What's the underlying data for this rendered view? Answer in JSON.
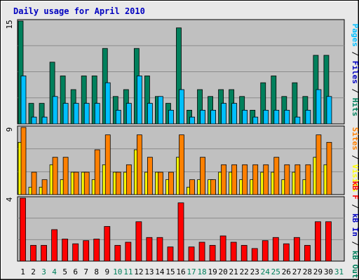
{
  "title": "Daily usage for April 2010",
  "colors": {
    "background": "#e8e8e8",
    "panel": "#c0c0c0",
    "grid": "#8c8c8c",
    "title": "#0000c0",
    "pages": "#00bfff",
    "files": "#0000c0",
    "hits": "#00805c",
    "visits": "#ffff00",
    "sites": "#ff8000",
    "kbin": "#0000c0",
    "kbout": "#00805c",
    "kbf": "#ff0000",
    "day_normal": "#000000",
    "day_weekend": "#00805c"
  },
  "right_labels": {
    "top": [
      {
        "text": "Pages",
        "color": "#00bfff"
      },
      {
        "text": " / ",
        "color": "#000000"
      },
      {
        "text": "Files",
        "color": "#0000c0"
      },
      {
        "text": " / ",
        "color": "#000000"
      },
      {
        "text": "Hits",
        "color": "#00805c"
      }
    ],
    "middle": [
      {
        "text": "Sites",
        "color": "#ff8000"
      },
      {
        "text": " / ",
        "color": "#000000"
      },
      {
        "text": "Visits",
        "color": "#ffff00"
      }
    ],
    "bottom": [
      {
        "text": "kB F",
        "color": "#ff0000"
      },
      {
        "text": " / ",
        "color": "#000000"
      },
      {
        "text": "kB In",
        "color": "#0000c0"
      },
      {
        "text": " / ",
        "color": "#000000"
      },
      {
        "text": "kB Out",
        "color": "#00805c"
      }
    ]
  },
  "chart_data": {
    "type": "bar",
    "title": "Daily usage for April 2010",
    "x": [
      "1",
      "2",
      "3",
      "4",
      "5",
      "6",
      "7",
      "8",
      "9",
      "10",
      "11",
      "12",
      "13",
      "14",
      "15",
      "16",
      "17",
      "18",
      "19",
      "20",
      "21",
      "22",
      "23",
      "24",
      "25",
      "26",
      "27",
      "28",
      "29",
      "30",
      "31"
    ],
    "weekend_days": [
      3,
      4,
      10,
      11,
      17,
      18,
      24,
      25,
      31
    ],
    "panels": [
      {
        "ymax": 15,
        "ymax_label": "15",
        "series": [
          {
            "name": "Hits",
            "color": "#00805c",
            "values": [
              15,
              3,
              3,
              9,
              7,
              5,
              7,
              7,
              11,
              4,
              5,
              11,
              7,
              4,
              3,
              14,
              2,
              5,
              4,
              5,
              5,
              4,
              2,
              6,
              7,
              4,
              6,
              4,
              10,
              10,
              null
            ]
          },
          {
            "name": "Pages",
            "color": "#00bfff",
            "values": [
              7,
              1,
              1,
              4,
              3,
              3,
              3,
              3,
              6,
              2,
              3,
              7,
              3,
              4,
              2,
              5,
              1,
              2,
              2,
              3,
              3,
              2,
              1,
              2,
              2,
              2,
              1,
              2,
              5,
              4,
              null
            ]
          }
        ]
      },
      {
        "ymax": 9,
        "ymax_label": "9",
        "series": [
          {
            "name": "Visits",
            "color": "#ffff00",
            "values": [
              7,
              1,
              1,
              4,
              2,
              3,
              3,
              2,
              4,
              3,
              3,
              6,
              3,
              3,
              2,
              5,
              1,
              2,
              2,
              3,
              3,
              2,
              2,
              3,
              3,
              2,
              3,
              2,
              5,
              4,
              null
            ]
          },
          {
            "name": "Sites",
            "color": "#ff8000",
            "values": [
              9,
              3,
              2,
              5,
              5,
              3,
              3,
              6,
              8,
              3,
              4,
              8,
              5,
              3,
              3,
              8,
              2,
              5,
              2,
              4,
              4,
              4,
              4,
              4,
              5,
              4,
              4,
              4,
              8,
              7,
              null
            ]
          }
        ]
      },
      {
        "ymax": 4,
        "ymax_label": "4",
        "series": [
          {
            "name": "kB F",
            "color": "#ff0000",
            "values": [
              4,
              1,
              1,
              2,
              1.4,
              1.1,
              1.3,
              1.4,
              2.2,
              1,
              1.2,
              2.5,
              1.5,
              1.5,
              0.9,
              3.7,
              0.9,
              1.2,
              1,
              1.6,
              1.2,
              1,
              0.8,
              1.3,
              1.5,
              1.1,
              1.5,
              1,
              2.5,
              2.5,
              null
            ]
          }
        ]
      }
    ]
  }
}
